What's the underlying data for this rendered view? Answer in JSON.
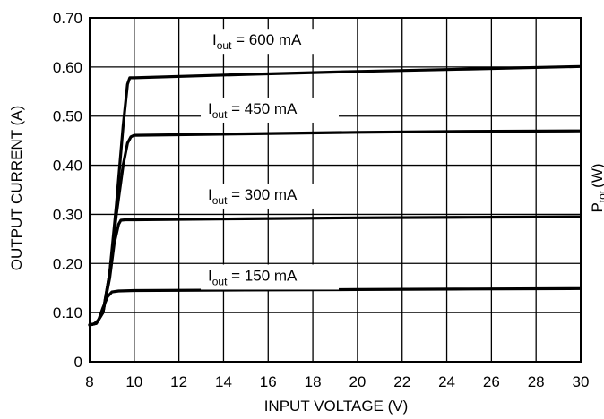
{
  "chart_data": {
    "type": "line",
    "xlabel": "INPUT VOLTAGE (V)",
    "ylabel": "OUTPUT CURRENT (A)",
    "right_ylabel": "P",
    "right_ylabel_sub": "tot",
    "right_ylabel_unit": "(W)",
    "xlim": [
      8,
      30
    ],
    "ylim": [
      0,
      0.7
    ],
    "x_ticks": [
      8,
      10,
      12,
      14,
      16,
      18,
      20,
      22,
      24,
      26,
      28,
      30
    ],
    "x_tick_labels": [
      "8",
      "10",
      "12",
      "14",
      "16",
      "18",
      "20",
      "22",
      "24",
      "26",
      "28",
      "30"
    ],
    "y_ticks": [
      0,
      0.1,
      0.2,
      0.3,
      0.4,
      0.5,
      0.6,
      0.7
    ],
    "y_tick_labels": [
      "0",
      "0.10",
      "0.20",
      "0.30",
      "0.40",
      "0.50",
      "0.60",
      "0.70"
    ],
    "grid": true,
    "series": [
      {
        "name_main": "I",
        "name_sub": "out",
        "name_rest": " = 600 mA",
        "label_x": 13.5,
        "label_y": 0.645,
        "x": [
          8.0,
          8.3,
          8.6,
          8.9,
          9.2,
          9.5,
          9.7,
          9.8,
          10.0,
          15.0,
          20.0,
          25.0,
          30.0
        ],
        "y": [
          0.075,
          0.078,
          0.1,
          0.18,
          0.32,
          0.48,
          0.565,
          0.578,
          0.578,
          0.585,
          0.591,
          0.596,
          0.601
        ]
      },
      {
        "name_main": "I",
        "name_sub": "out",
        "name_rest": " = 450 mA",
        "label_x": 13.3,
        "label_y": 0.505,
        "x": [
          8.0,
          8.3,
          8.6,
          8.9,
          9.2,
          9.5,
          9.7,
          9.85,
          10.0,
          15.0,
          20.0,
          25.0,
          30.0
        ],
        "y": [
          0.075,
          0.078,
          0.1,
          0.18,
          0.3,
          0.4,
          0.445,
          0.458,
          0.461,
          0.464,
          0.467,
          0.469,
          0.47
        ]
      },
      {
        "name_main": "I",
        "name_sub": "out",
        "name_rest": " = 300 mA",
        "label_x": 13.3,
        "label_y": 0.33,
        "x": [
          8.0,
          8.3,
          8.6,
          8.9,
          9.1,
          9.3,
          9.4,
          9.6,
          10.0,
          15.0,
          20.0,
          25.0,
          30.0
        ],
        "y": [
          0.075,
          0.078,
          0.1,
          0.17,
          0.24,
          0.28,
          0.288,
          0.289,
          0.289,
          0.291,
          0.293,
          0.294,
          0.295
        ]
      },
      {
        "name_main": "I",
        "name_sub": "out",
        "name_rest": " = 150 mA",
        "label_x": 13.3,
        "label_y": 0.165,
        "x": [
          8.0,
          8.2,
          8.4,
          8.6,
          8.8,
          9.0,
          9.3,
          10.0,
          15.0,
          20.0,
          25.0,
          30.0
        ],
        "y": [
          0.075,
          0.077,
          0.085,
          0.11,
          0.132,
          0.142,
          0.144,
          0.145,
          0.146,
          0.147,
          0.148,
          0.149
        ]
      }
    ]
  }
}
